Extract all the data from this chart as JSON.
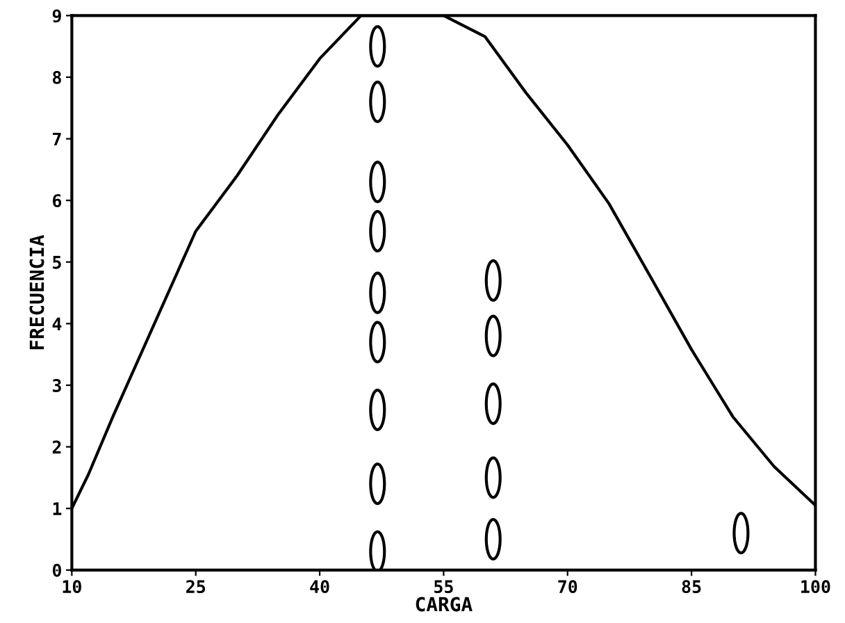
{
  "chart_data": {
    "type": "scatter",
    "xlabel": "CARGA",
    "ylabel": "FRECUENCIA",
    "xlim": [
      10,
      100
    ],
    "xticks": [
      10,
      25,
      40,
      55,
      70,
      85,
      100
    ],
    "ylim": [
      0,
      9
    ],
    "yticks": [
      0,
      1,
      2,
      3,
      4,
      5,
      6,
      7,
      8,
      9
    ],
    "grid": false,
    "marker": "circle",
    "series": [
      {
        "type": "line",
        "color": "#000000",
        "marker": "none",
        "x": [
          10,
          12,
          15,
          20,
          25,
          30,
          35,
          40,
          45,
          50,
          55,
          60,
          65,
          70,
          75,
          80,
          85,
          90,
          95,
          100
        ],
        "values": [
          1.0,
          1.55,
          2.5,
          4.0,
          5.5,
          6.4,
          7.4,
          8.3,
          9.0,
          9.0,
          9.0,
          8.66,
          7.74,
          6.9,
          5.95,
          4.77,
          3.58,
          2.49,
          1.68,
          1.05
        ]
      },
      {
        "color": "#000000",
        "x": [
          47,
          47,
          47,
          47,
          47,
          47,
          47,
          47,
          47,
          61,
          61,
          61,
          61,
          61,
          91
        ],
        "values": [
          8.5,
          7.6,
          6.3,
          5.5,
          4.5,
          3.7,
          2.6,
          1.4,
          0.3,
          4.7,
          3.8,
          2.7,
          1.5,
          0.5,
          0.6
        ]
      }
    ]
  }
}
